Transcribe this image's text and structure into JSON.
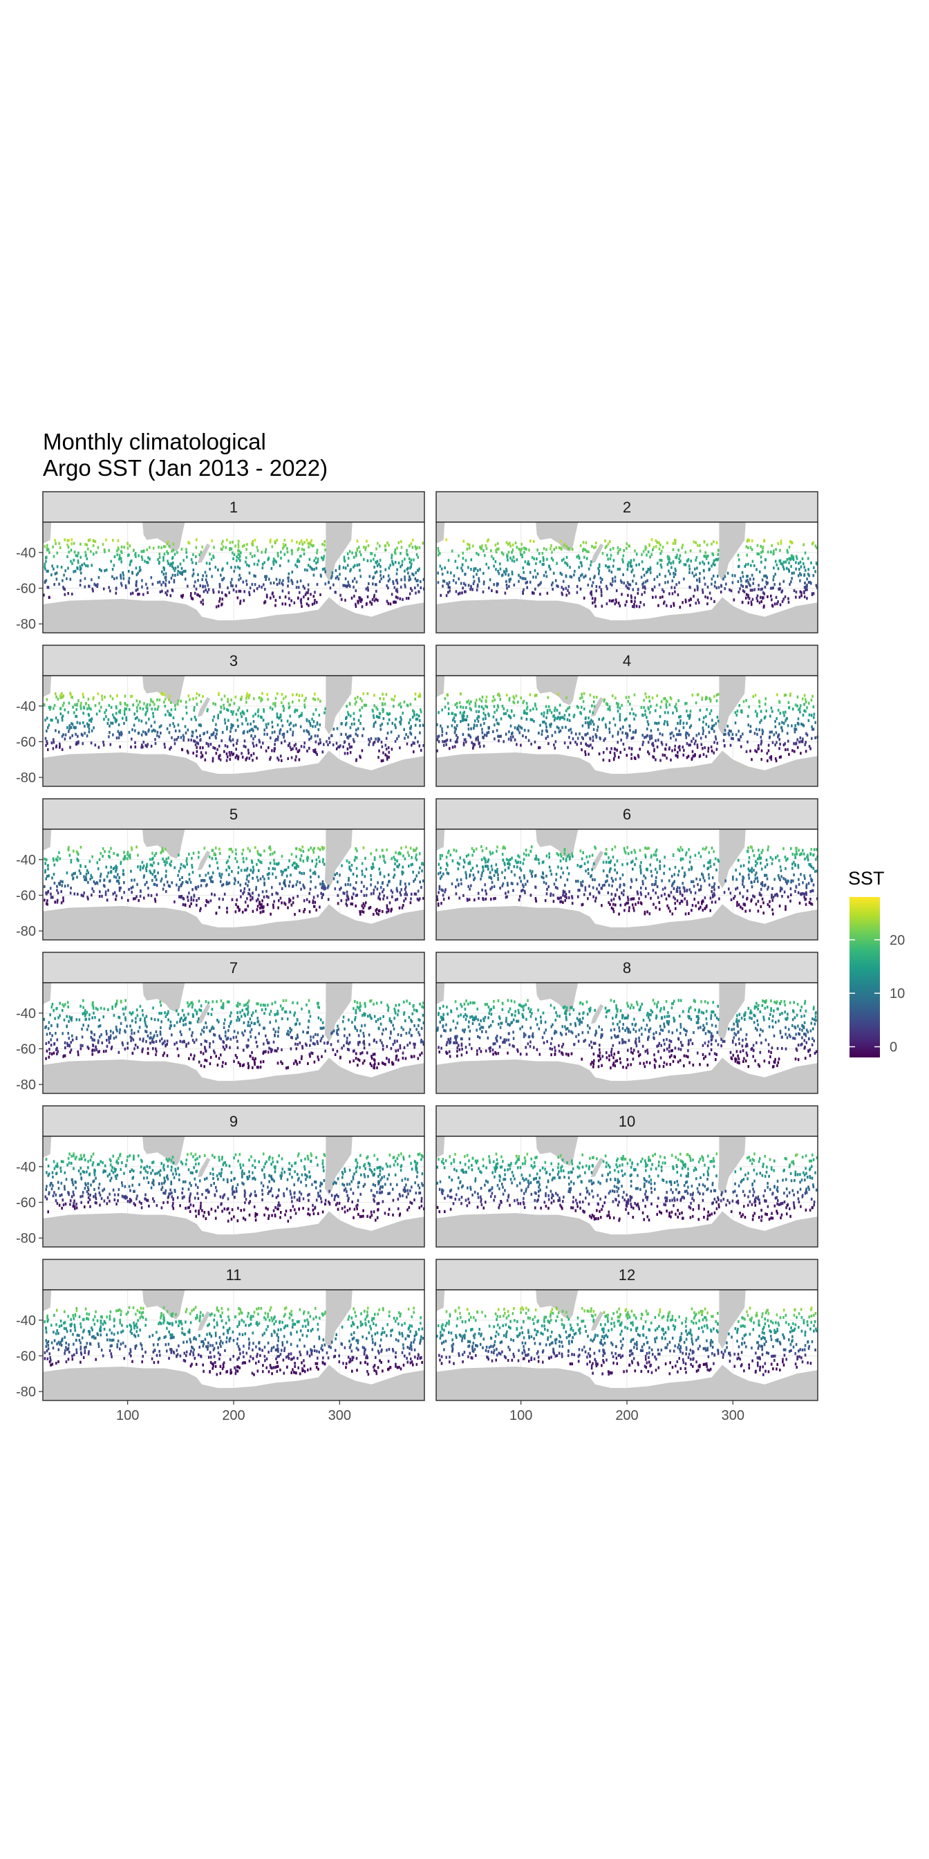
{
  "chart_data": {
    "type": "heatmap",
    "title_lines": [
      "Monthly climatological",
      "Argo SST (Jan 2013 - 2022)"
    ],
    "xlabel": "",
    "ylabel": "",
    "facet_variable": "month",
    "facets": [
      "1",
      "2",
      "3",
      "4",
      "5",
      "6",
      "7",
      "8",
      "9",
      "10",
      "11",
      "12"
    ],
    "layout": {
      "columns": 2,
      "rows": 6
    },
    "x_range": [
      20,
      380
    ],
    "y_range": [
      -85,
      -23
    ],
    "x_ticks": [
      100,
      200,
      300
    ],
    "x_tick_labels": [
      "100",
      "200",
      "300"
    ],
    "y_ticks": [
      -40,
      -60,
      -80
    ],
    "y_tick_labels": [
      "-40",
      "-60",
      "-80"
    ],
    "grid": true,
    "legend": {
      "title": "SST",
      "position": "right",
      "scale": "viridis",
      "range": [
        -2,
        28
      ],
      "ticks": [
        0,
        10,
        20
      ],
      "tick_labels": [
        "0",
        "10",
        "20"
      ]
    },
    "sst_model": {
      "north_warm": 22,
      "south_cold": -1,
      "seasonal_amplitude_warm": 3,
      "seasonal_amplitude_cold": 1
    },
    "colors": {
      "land": "#c8c8c8",
      "strip_fill": "#d9d9d9",
      "panel_border": "#333333",
      "grid": "#ebebeb"
    }
  }
}
